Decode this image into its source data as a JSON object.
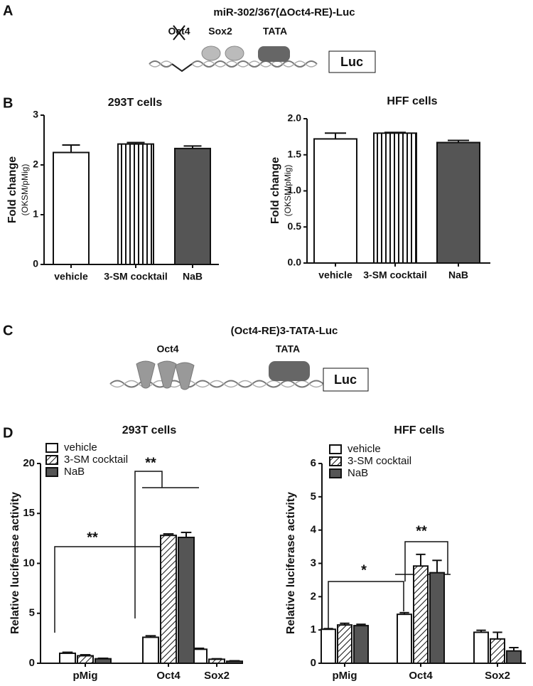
{
  "panel_labels": [
    "A",
    "B",
    "C",
    "D"
  ],
  "diagrams": [
    {
      "title": "miR-302/367(ΔOct4-RE)-Luc",
      "elements": [
        "Oct4",
        "Sox2",
        "TATA"
      ],
      "reporter": "Luc"
    },
    {
      "title": "(Oct4-RE)3-TATA-Luc",
      "elements": [
        "Oct4",
        "TATA"
      ],
      "reporter": "Luc"
    }
  ],
  "chart_data": [
    {
      "type": "bar",
      "title": "293T cells",
      "y_label": "Fold change",
      "y_label_sub": "(OKSM/pMig)",
      "categories": [
        "vehicle",
        "3-SM cocktail",
        "NaB"
      ],
      "values": [
        2.25,
        2.42,
        2.33
      ],
      "errors": [
        0.15,
        0.03,
        0.05
      ],
      "fills": [
        "white",
        "vertical-stripes",
        "#555555"
      ],
      "ylim": [
        0,
        3
      ],
      "yticks": [
        0,
        1,
        2,
        3
      ]
    },
    {
      "type": "bar",
      "title": "HFF cells",
      "y_label": "Fold change",
      "y_label_sub": "(OKSM/pMig)",
      "categories": [
        "vehicle",
        "3-SM cocktail",
        "NaB"
      ],
      "values": [
        1.72,
        1.8,
        1.67
      ],
      "errors": [
        0.08,
        0.01,
        0.03
      ],
      "fills": [
        "white",
        "vertical-stripes",
        "#555555"
      ],
      "ylim": [
        0,
        2
      ],
      "yticks": [
        {
          "value": 0,
          "label": "0.0"
        },
        {
          "value": 0.5,
          "label": "0.5"
        },
        {
          "value": 1,
          "label": "1.0"
        },
        {
          "value": 1.5,
          "label": "1.5"
        },
        {
          "value": 2,
          "label": "2.0"
        }
      ]
    },
    {
      "type": "grouped_bar",
      "title": "293T cells",
      "y_label": "Relative luciferase activity",
      "categories": [
        "pMig",
        "Oct4",
        "Sox2"
      ],
      "series": [
        {
          "name": "vehicle",
          "fill": "white",
          "values": [
            1.0,
            2.6,
            1.4
          ],
          "errors": [
            0.1,
            0.15,
            0.1
          ]
        },
        {
          "name": "3-SM cocktail",
          "fill": "diagonal-hatch",
          "values": [
            0.75,
            12.8,
            0.4
          ],
          "errors": [
            0.1,
            0.15,
            0.05
          ]
        },
        {
          "name": "NaB",
          "fill": "#555555",
          "values": [
            0.45,
            12.6,
            0.2
          ],
          "errors": [
            0.05,
            0.5,
            0.05
          ]
        }
      ],
      "annotations": [
        "**",
        "**"
      ],
      "ylim": [
        0,
        20
      ],
      "yticks": [
        0,
        5,
        10,
        15,
        20
      ]
    },
    {
      "type": "grouped_bar",
      "title": "HFF cells",
      "y_label": "Relative luciferase activity",
      "categories": [
        "pMig",
        "Oct4",
        "Sox2"
      ],
      "series": [
        {
          "name": "vehicle",
          "fill": "white",
          "values": [
            1.02,
            1.47,
            0.93
          ],
          "errors": [
            0.02,
            0.05,
            0.06
          ]
        },
        {
          "name": "3-SM cocktail",
          "fill": "diagonal-hatch",
          "values": [
            1.15,
            2.92,
            0.73
          ],
          "errors": [
            0.05,
            0.35,
            0.2
          ]
        },
        {
          "name": "NaB",
          "fill": "#555555",
          "values": [
            1.13,
            2.72,
            0.37
          ],
          "errors": [
            0.04,
            0.37,
            0.1
          ]
        }
      ],
      "annotations": [
        "**",
        "*"
      ],
      "ylim": [
        0,
        6
      ],
      "yticks": [
        0,
        1,
        2,
        3,
        4,
        5,
        6
      ]
    }
  ]
}
